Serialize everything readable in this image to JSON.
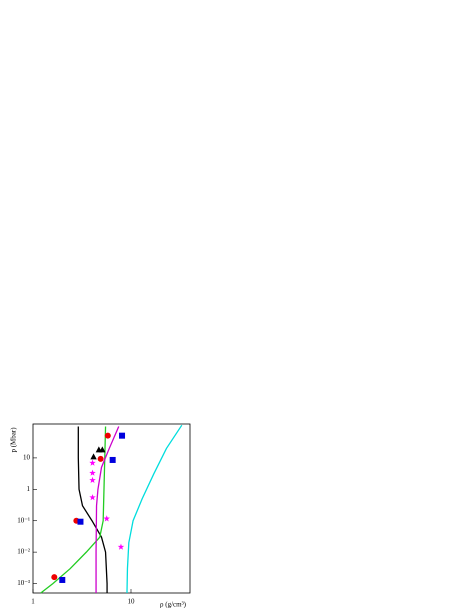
{
  "chart_data": {
    "type": "scatter",
    "x_label": "ρ (g/cm³)",
    "y_label": "p (Mbar)",
    "xlim": [
      1,
      40
    ],
    "ylim": [
      0.0005,
      120
    ],
    "x_log": true,
    "y_log": true,
    "xticks": [
      1,
      10
    ],
    "yticks": [
      {
        "value": 0.001,
        "label": "10⁻³"
      },
      {
        "value": 0.01,
        "label": "10⁻²"
      },
      {
        "value": 0.1,
        "label": "10⁻¹"
      },
      1,
      10
    ],
    "series": [
      {
        "mode": "line",
        "color": "#000000",
        "x": [
          2.9,
          2.9,
          2.95,
          3.2,
          4,
          5,
          5.5,
          5.7,
          5.7
        ],
        "values": [
          100,
          10,
          1,
          0.3,
          0.1,
          0.03,
          0.01,
          0.001,
          0.0005
        ]
      },
      {
        "mode": "line",
        "color": "#22cc22",
        "x": [
          1.2,
          1.6,
          2.4,
          3.5,
          4.8,
          5.2,
          5.3,
          5.4,
          5.5
        ],
        "values": [
          0.0005,
          0.001,
          0.003,
          0.01,
          0.03,
          0.1,
          1,
          10,
          100
        ]
      },
      {
        "mode": "line",
        "color": "#cc00cc",
        "x": [
          4.4,
          4.4,
          4.45,
          4.6,
          5,
          6,
          7.5
        ],
        "values": [
          0.0005,
          0.01,
          0.3,
          1,
          5,
          20,
          100
        ]
      },
      {
        "mode": "line",
        "color": "#00dddd",
        "x": [
          9.1,
          9.2,
          9.5,
          10.5,
          13,
          17,
          23,
          33
        ],
        "values": [
          0.0005,
          0.003,
          0.02,
          0.1,
          0.5,
          3,
          20,
          110
        ]
      },
      {
        "mode": "marker",
        "marker": "circle",
        "color": "#ee0000",
        "x": [
          5.8,
          4.9,
          2.77,
          1.65
        ],
        "values": [
          51,
          9.3,
          0.1,
          0.0016
        ]
      },
      {
        "mode": "marker",
        "marker": "square",
        "color": "#0000dd",
        "x": [
          8.1,
          6.5,
          3.05,
          1.99
        ],
        "values": [
          51,
          8.6,
          0.093,
          0.0013
        ]
      },
      {
        "mode": "marker",
        "marker": "star",
        "color": "#ff00ff",
        "x": [
          4.05,
          4.05,
          4.05,
          4.05,
          5.65,
          7.9
        ],
        "values": [
          6.9,
          3.3,
          1.95,
          0.55,
          0.116,
          0.0146
        ]
      },
      {
        "mode": "marker",
        "marker": "triangle",
        "color": "#000000",
        "x": [
          4.15,
          4.7,
          5.1
        ],
        "values": [
          10.8,
          18,
          18
        ]
      }
    ]
  }
}
